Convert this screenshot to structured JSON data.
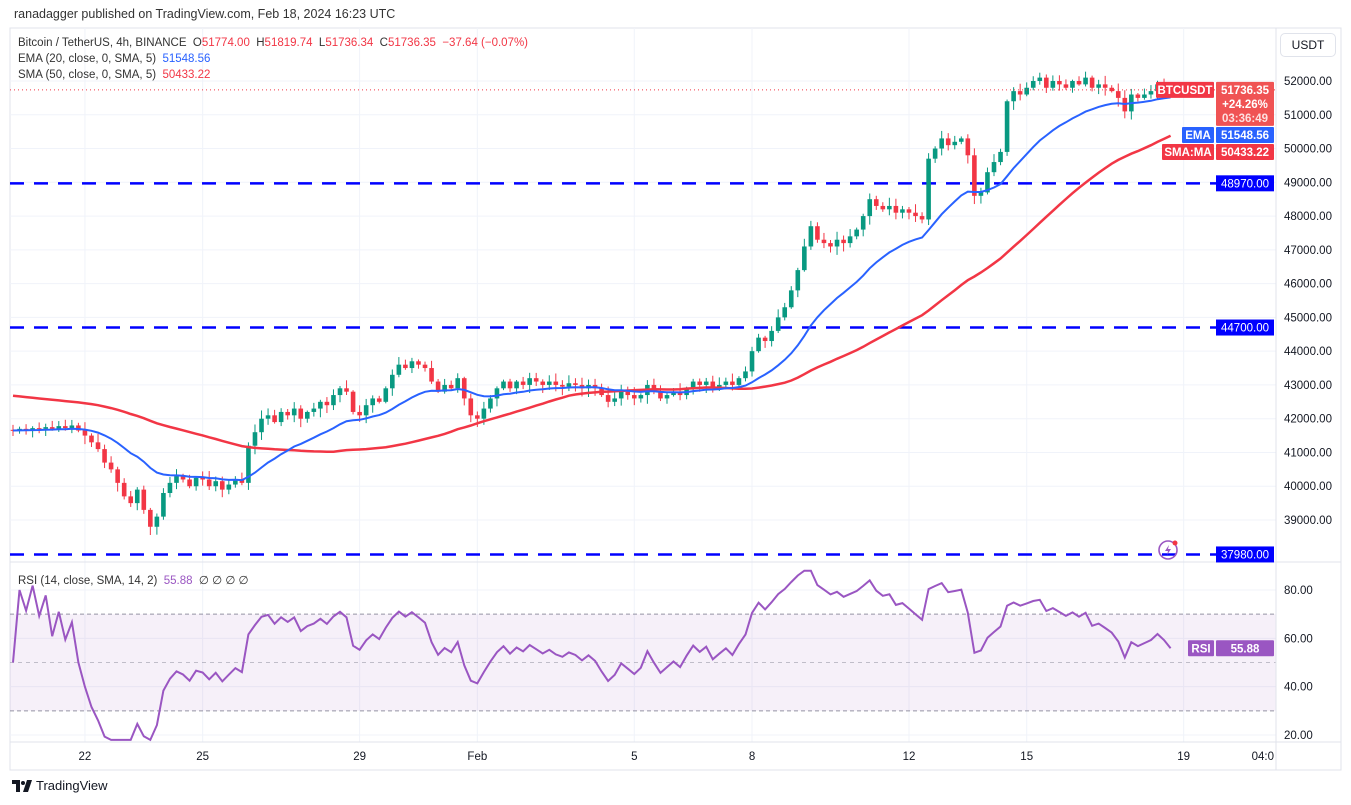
{
  "publisher": "ranadagger published on TradingView.com, Feb 18, 2024 16:23 UTC",
  "legend": {
    "symbol": "Bitcoin / TetherUS, 4h, BINANCE",
    "o_label": "O",
    "o": "51774.00",
    "h_label": "H",
    "h": "51819.74",
    "l_label": "L",
    "l": "51736.34",
    "c_label": "C",
    "c": "51736.35",
    "change": "−37.64 (−0.07%)",
    "ema_label": "EMA (20, close, 0, SMA, 5)",
    "ema_value": "51548.56",
    "sma_label": "SMA (50, close, 0, SMA, 5)",
    "sma_value": "50433.22",
    "rsi_label": "RSI (14, close, SMA, 14, 2)",
    "rsi_value": "55.88",
    "rsi_extra": "∅ ∅ ∅ ∅"
  },
  "currency_button": "USDT",
  "price_tags": {
    "symbol_tag": "BTCUSDT",
    "last_price": "51736.35",
    "change_pct": "+24.26%",
    "countdown": "03:36:49",
    "ema_tag": "EMA",
    "ema_price": "51548.56",
    "sma_tag": "SMA:MA",
    "sma_price": "50433.22",
    "rsi_tag": "RSI",
    "rsi_price": "55.88"
  },
  "colors": {
    "up": "#089981",
    "down": "#f23645",
    "ema": "#2962ff",
    "sma": "#f23645",
    "rsi": "#9a56c2",
    "levels": "#0000ff"
  },
  "footer": {
    "logo_text": "TradingView"
  },
  "chart_data": [
    {
      "type": "candlestick",
      "interval": "4h",
      "start": "2024-01-20 04:00",
      "closes": [
        41650,
        41700,
        41680,
        41720,
        41700,
        41750,
        41700,
        41780,
        41720,
        41800,
        41650,
        41500,
        41300,
        41100,
        40700,
        40500,
        40100,
        39700,
        39500,
        39900,
        39300,
        38800,
        39100,
        39800,
        40100,
        40300,
        40200,
        40000,
        40250,
        40200,
        40000,
        40150,
        39900,
        40050,
        40200,
        40100,
        41200,
        41600,
        42000,
        42100,
        41900,
        42200,
        42100,
        42300,
        42000,
        42200,
        42300,
        42500,
        42400,
        42700,
        42900,
        42800,
        42200,
        42100,
        42400,
        42600,
        42500,
        42900,
        43300,
        43600,
        43500,
        43700,
        43600,
        43500,
        43100,
        42800,
        43000,
        42900,
        43200,
        42600,
        42100,
        42000,
        42300,
        42600,
        42900,
        43100,
        42900,
        43100,
        43000,
        43200,
        43100,
        43000,
        43100,
        43000,
        42950,
        43050,
        43000,
        42900,
        43000,
        42900,
        42700,
        42500,
        42600,
        42800,
        42700,
        42600,
        42700,
        43000,
        42800,
        42600,
        42700,
        42800,
        42700,
        42900,
        43100,
        43000,
        43100,
        42900,
        43000,
        43100,
        43000,
        43200,
        43400,
        44000,
        44400,
        44300,
        44600,
        45000,
        45300,
        45800,
        46400,
        47100,
        47700,
        47300,
        47200,
        47100,
        47300,
        47200,
        47400,
        47600,
        48000,
        48500,
        48300,
        48200,
        48300,
        48100,
        48200,
        48100,
        48000,
        47900,
        49700,
        50000,
        50300,
        50100,
        50200,
        50300,
        49800,
        48600,
        48700,
        49300,
        49600,
        49900,
        51400,
        51700,
        51600,
        51800,
        52000,
        52100,
        51800,
        52000,
        51900,
        51800,
        52000,
        51900,
        52100,
        51800,
        51900,
        51800,
        51700,
        51500,
        51100,
        51600,
        51500,
        51600,
        51700,
        51900,
        51774,
        51736.35
      ],
      "indicators": [
        "EMA 20",
        "SMA 50"
      ],
      "horizontal_levels": [
        {
          "price": 48970,
          "label": "48970.00"
        },
        {
          "price": 44700,
          "label": "44700.00"
        },
        {
          "price": 37980,
          "label": "37980.00"
        }
      ],
      "ylim": [
        37800,
        53000
      ],
      "y_ticks": [
        "52000.00",
        "51000.00",
        "50000.00",
        "49000.00",
        "48000.00",
        "47000.00",
        "46000.00",
        "45000.00",
        "44000.00",
        "43000.00",
        "42000.00",
        "41000.00",
        "40000.00",
        "39000.00"
      ],
      "y_tick_values": [
        52000,
        51000,
        50000,
        49000,
        48000,
        47000,
        46000,
        45000,
        44000,
        43000,
        42000,
        41000,
        40000,
        39000
      ],
      "x_ticks": [
        {
          "label": "22",
          "date": "2024-01-22"
        },
        {
          "label": "25",
          "date": "2024-01-25"
        },
        {
          "label": "29",
          "date": "2024-01-29"
        },
        {
          "label": "Feb",
          "date": "2024-02-01"
        },
        {
          "label": "5",
          "date": "2024-02-05"
        },
        {
          "label": "8",
          "date": "2024-02-08"
        },
        {
          "label": "12",
          "date": "2024-02-12"
        },
        {
          "label": "15",
          "date": "2024-02-15"
        },
        {
          "label": "19",
          "date": "2024-02-19"
        },
        {
          "label": "04:0",
          "date": "2024-02-19 04:00"
        }
      ],
      "grid": true
    },
    {
      "type": "line",
      "name": "RSI",
      "period": 14,
      "last_value": 55.88,
      "ylim": [
        15,
        90
      ],
      "y_ticks": [
        "80.00",
        "60.00",
        "40.00",
        "20.00"
      ],
      "y_tick_values": [
        80,
        60,
        40,
        20
      ],
      "bands": [
        70,
        50,
        30
      ]
    }
  ]
}
